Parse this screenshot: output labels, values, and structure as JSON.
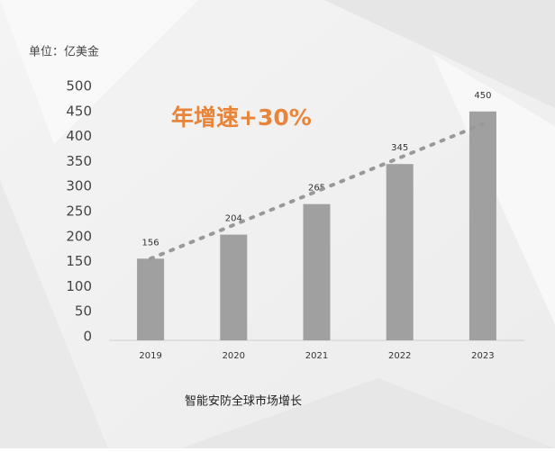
{
  "chart_data": {
    "type": "bar",
    "unit_label": "单位：亿美金",
    "annotation": "年增速+30%",
    "caption": "智能安防全球市场增长",
    "categories": [
      "2019",
      "2020",
      "2021",
      "2022",
      "2023"
    ],
    "values": [
      156,
      204,
      265,
      345,
      450
    ],
    "color": "#a0a0a0",
    "ylim": [
      0,
      500
    ],
    "yticks": [
      0,
      50,
      100,
      150,
      200,
      250,
      300,
      350,
      400,
      450,
      500
    ],
    "annotation_color": "#e8853a"
  }
}
